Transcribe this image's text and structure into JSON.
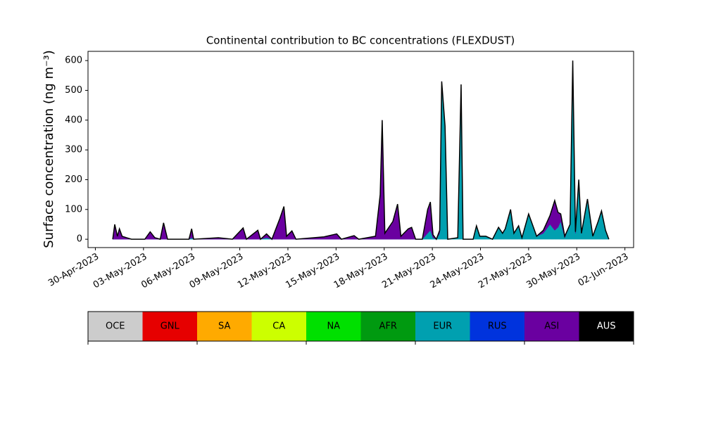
{
  "chart_data": {
    "type": "stacked-area",
    "title": "Continental contribution to BC concentrations (FLEXDUST)",
    "ylabel": "Surface concentration (ng m⁻³)",
    "x": [
      "2023-05-01T02:00",
      "2023-05-01T05:00",
      "2023-05-01T09:00",
      "2023-05-01T12:00",
      "2023-05-01T16:00",
      "2023-05-01T23:00",
      "2023-05-02T06:00",
      "2023-05-03T02:00",
      "2023-05-03T10:00",
      "2023-05-03T17:00",
      "2023-05-04T01:00",
      "2023-05-04T06:00",
      "2023-05-04T12:00",
      "2023-05-05T20:00",
      "2023-05-06T00:00",
      "2023-05-06T03:00",
      "2023-05-07T16:00",
      "2023-05-08T13:00",
      "2023-05-09T05:00",
      "2023-05-09T10:00",
      "2023-05-10T03:00",
      "2023-05-10T07:00",
      "2023-05-10T16:00",
      "2023-05-11T00:00",
      "2023-05-11T12:00",
      "2023-05-11T18:00",
      "2023-05-11T22:00",
      "2023-05-12T06:00",
      "2023-05-12T12:00",
      "2023-05-14T06:00",
      "2023-05-15T01:00",
      "2023-05-15T08:00",
      "2023-05-16T03:00",
      "2023-05-16T10:00",
      "2023-05-17T11:00",
      "2023-05-17T18:00",
      "2023-05-17T21:00",
      "2023-05-18T01:00",
      "2023-05-18T13:00",
      "2023-05-18T20:00",
      "2023-05-19T01:00",
      "2023-05-19T12:00",
      "2023-05-19T17:00",
      "2023-05-19T23:00",
      "2023-05-20T09:00",
      "2023-05-20T17:00",
      "2023-05-20T21:00",
      "2023-05-21T01:00",
      "2023-05-21T06:00",
      "2023-05-21T11:00",
      "2023-05-21T14:00",
      "2023-05-21T19:00",
      "2023-05-21T23:00",
      "2023-05-22T14:00",
      "2023-05-22T19:00",
      "2023-05-22T22:00",
      "2023-05-23T13:00",
      "2023-05-23T18:00",
      "2023-05-23T23:00",
      "2023-05-24T08:00",
      "2023-05-24T18:00",
      "2023-05-25T03:00",
      "2023-05-25T09:00",
      "2023-05-25T13:00",
      "2023-05-25T21:00",
      "2023-05-26T02:00",
      "2023-05-26T09:00",
      "2023-05-26T14:00",
      "2023-05-27T00:00",
      "2023-05-27T04:00",
      "2023-05-27T12:00",
      "2023-05-27T22:00",
      "2023-05-28T08:00",
      "2023-05-28T15:00",
      "2023-05-28T20:00",
      "2023-05-29T00:00",
      "2023-05-29T06:00",
      "2023-05-29T14:00",
      "2023-05-29T18:00",
      "2023-05-29T22:00",
      "2023-05-30T03:00",
      "2023-05-30T07:00",
      "2023-05-30T16:00",
      "2023-05-31T00:00",
      "2023-05-31T08:00",
      "2023-05-31T13:00",
      "2023-05-31T19:00",
      "2023-06-01T00:00"
    ],
    "series": [
      {
        "name": "EUR",
        "color": "#00a0b0",
        "values": [
          0,
          0,
          0,
          0,
          0,
          0,
          0,
          0,
          0,
          0,
          0,
          0,
          0,
          0,
          5,
          0,
          0,
          0,
          0,
          0,
          0,
          0,
          5,
          0,
          0,
          0,
          0,
          0,
          0,
          0,
          0,
          0,
          0,
          0,
          0,
          0,
          0,
          0,
          0,
          0,
          0,
          0,
          0,
          0,
          0,
          20,
          30,
          5,
          0,
          20,
          520,
          380,
          0,
          5,
          520,
          0,
          0,
          45,
          10,
          10,
          0,
          40,
          20,
          35,
          100,
          20,
          45,
          5,
          85,
          60,
          10,
          20,
          50,
          30,
          40,
          60,
          5,
          50,
          560,
          20,
          200,
          20,
          135,
          10,
          60,
          95,
          30,
          0
        ]
      },
      {
        "name": "ASI",
        "color": "#6a00a0",
        "values": [
          0,
          50,
          10,
          35,
          10,
          5,
          0,
          0,
          25,
          5,
          0,
          55,
          0,
          0,
          30,
          0,
          5,
          0,
          38,
          0,
          30,
          0,
          13,
          0,
          70,
          110,
          10,
          28,
          0,
          8,
          18,
          0,
          12,
          0,
          10,
          150,
          400,
          20,
          60,
          118,
          10,
          35,
          40,
          0,
          0,
          80,
          95,
          10,
          0,
          10,
          10,
          0,
          0,
          0,
          0,
          0,
          0,
          0,
          0,
          0,
          0,
          0,
          0,
          0,
          0,
          0,
          0,
          0,
          0,
          0,
          0,
          10,
          30,
          100,
          50,
          25,
          5,
          0,
          40,
          5,
          0,
          0,
          0,
          0,
          0,
          0,
          0,
          0
        ]
      }
    ],
    "outline_color": "#000000",
    "xlim": [
      "2023-04-29T13:00",
      "2023-06-02T13:00"
    ],
    "xticks": [
      {
        "value": "2023-04-30",
        "label": "30-Apr-2023"
      },
      {
        "value": "2023-05-03",
        "label": "03-May-2023"
      },
      {
        "value": "2023-05-06",
        "label": "06-May-2023"
      },
      {
        "value": "2023-05-09",
        "label": "09-May-2023"
      },
      {
        "value": "2023-05-12",
        "label": "12-May-2023"
      },
      {
        "value": "2023-05-15",
        "label": "15-May-2023"
      },
      {
        "value": "2023-05-18",
        "label": "18-May-2023"
      },
      {
        "value": "2023-05-21",
        "label": "21-May-2023"
      },
      {
        "value": "2023-05-24",
        "label": "24-May-2023"
      },
      {
        "value": "2023-05-27",
        "label": "27-May-2023"
      },
      {
        "value": "2023-05-30",
        "label": "30-May-2023"
      },
      {
        "value": "2023-06-02",
        "label": "02-Jun-2023"
      }
    ],
    "ylim": [
      -28,
      631
    ],
    "yticks": [
      0,
      100,
      200,
      300,
      400,
      500,
      600
    ],
    "colorbar": {
      "labels": [
        "OCE",
        "GNL",
        "SA",
        "CA",
        "NA",
        "AFR",
        "EUR",
        "RUS",
        "ASI",
        "AUS"
      ],
      "colors": [
        "#cccccc",
        "#e60000",
        "#ffaa00",
        "#ccff00",
        "#00e000",
        "#009a10",
        "#00a0b0",
        "#0033dd",
        "#6a00a0",
        "#000000"
      ],
      "label_colors": [
        "#000000",
        "#000000",
        "#000000",
        "#000000",
        "#000000",
        "#000000",
        "#000000",
        "#000000",
        "#000000",
        "#ffffff"
      ]
    }
  }
}
